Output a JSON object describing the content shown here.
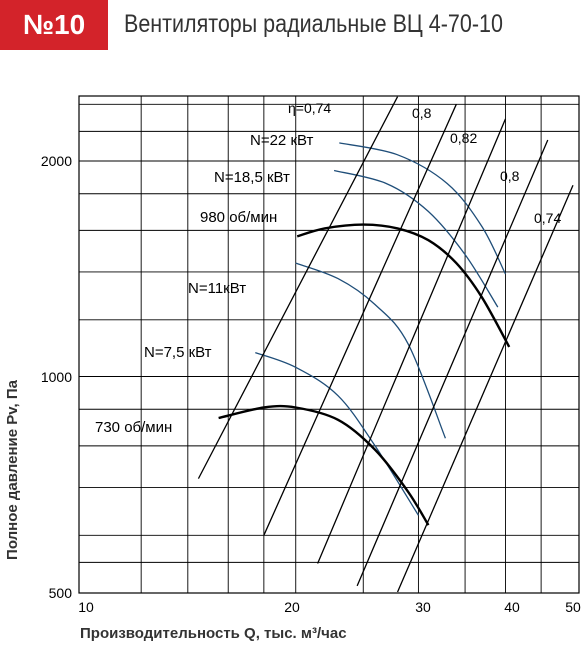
{
  "header": {
    "badge": "№10",
    "title": "Вентиляторы радиальные ВЦ 4-70-10"
  },
  "colors": {
    "badge": "#d3232a",
    "grid": "#000000",
    "speed_curve": "#000000",
    "power_curve": "#1f4e79"
  },
  "chart_data": {
    "type": "line",
    "x_scale": "log",
    "y_scale": "log",
    "xlabel": "Производительность Q, тыс. м³/час",
    "ylabel": "Полное давление Pv, Па",
    "xlim": [
      10,
      50
    ],
    "ylim": [
      500,
      2600
    ],
    "x_ticks": [
      10,
      20,
      30,
      40,
      50
    ],
    "y_ticks": [
      500,
      1000,
      2000
    ],
    "grid": true,
    "speed_curves": [
      {
        "name": "980 об/мин",
        "points": [
          [
            20.1,
            1570
          ],
          [
            22,
            1610
          ],
          [
            25,
            1630
          ],
          [
            28,
            1610
          ],
          [
            31,
            1550
          ],
          [
            34,
            1440
          ],
          [
            37,
            1290
          ],
          [
            40.5,
            1100
          ]
        ]
      },
      {
        "name": "730 об/мин",
        "points": [
          [
            15.5,
            875
          ],
          [
            18,
            905
          ],
          [
            20,
            905
          ],
          [
            23,
            870
          ],
          [
            26,
            790
          ],
          [
            29,
            690
          ],
          [
            31,
            620
          ]
        ]
      }
    ],
    "power_curves": [
      {
        "name": "N=22 кВт",
        "points": [
          [
            23.1,
            2120
          ],
          [
            28,
            2040
          ],
          [
            33,
            1860
          ],
          [
            37,
            1620
          ],
          [
            40,
            1390
          ]
        ]
      },
      {
        "name": "N=18,5 кВт",
        "points": [
          [
            22.7,
            1940
          ],
          [
            27,
            1860
          ],
          [
            31,
            1700
          ],
          [
            35,
            1480
          ],
          [
            39,
            1250
          ]
        ]
      },
      {
        "name": "N=11кВт",
        "points": [
          [
            20,
            1440
          ],
          [
            23,
            1370
          ],
          [
            26,
            1260
          ],
          [
            29,
            1110
          ],
          [
            32.8,
            820
          ]
        ]
      },
      {
        "name": "N=7,5 кВт",
        "points": [
          [
            17.5,
            1080
          ],
          [
            20,
            1030
          ],
          [
            23,
            940
          ],
          [
            26,
            800
          ],
          [
            30,
            640
          ]
        ]
      }
    ],
    "efficiency_lines": [
      {
        "name": "η=0,74",
        "points": [
          [
            14.5,
            720
          ],
          [
            28,
            2460
          ]
        ]
      },
      {
        "name": "0,8",
        "points": [
          [
            18,
            600
          ],
          [
            34,
            2400
          ]
        ]
      },
      {
        "name": "0,82",
        "points": [
          [
            21.5,
            548
          ],
          [
            40,
            2290
          ]
        ]
      },
      {
        "name": "0,8",
        "points": [
          [
            24.5,
            510
          ],
          [
            46,
            2140
          ]
        ]
      },
      {
        "name": "0,74",
        "points": [
          [
            28,
            500
          ],
          [
            50,
            1850
          ]
        ]
      }
    ]
  }
}
